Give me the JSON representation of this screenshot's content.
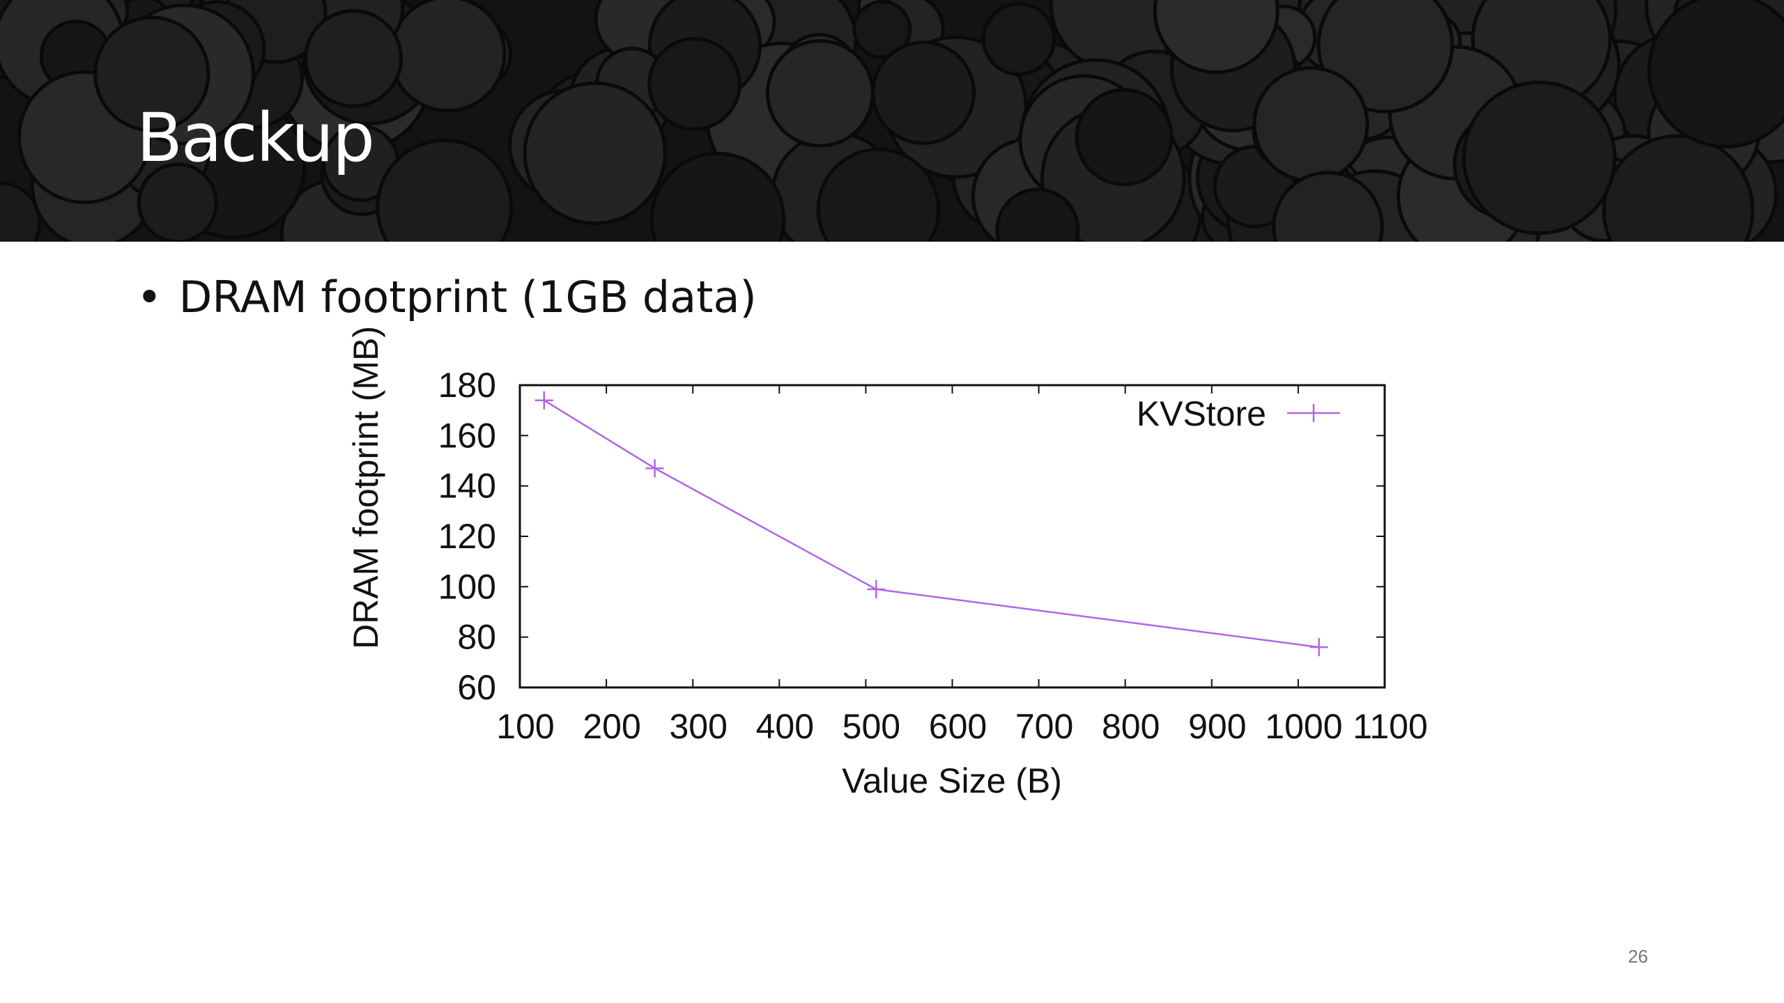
{
  "slide": {
    "title": "Backup",
    "bullet": "DRAM footprint (1GB data)",
    "bullet_symbol": "•",
    "page_number": "26"
  },
  "colors": {
    "header_background": "#141212",
    "series": "#b264e6",
    "title_text": "#ffffff"
  },
  "chart_data": {
    "type": "line",
    "title": "",
    "xlabel": "Value Size (B)",
    "ylabel": "DRAM footprint (MB)",
    "xlim": [
      100,
      1100
    ],
    "ylim": [
      60,
      180
    ],
    "xticks": [
      100,
      200,
      300,
      400,
      500,
      600,
      700,
      800,
      900,
      1000,
      1100
    ],
    "yticks": [
      60,
      80,
      100,
      120,
      140,
      160,
      180
    ],
    "grid": false,
    "legend_position": "top-right",
    "marker": "plus",
    "series": [
      {
        "name": "KVStore",
        "x": [
          128,
          256,
          512,
          1024
        ],
        "y": [
          174,
          147,
          99,
          76
        ]
      }
    ]
  }
}
